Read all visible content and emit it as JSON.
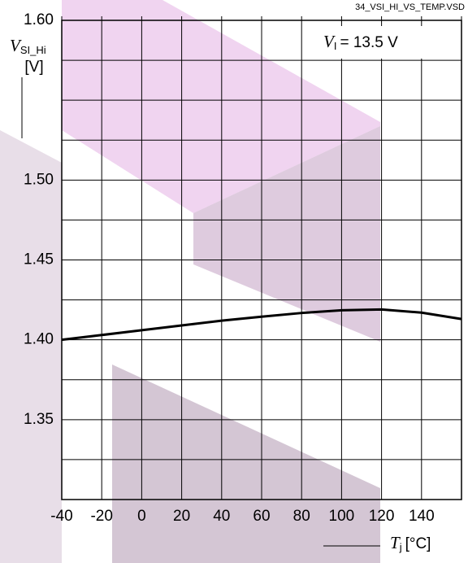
{
  "chart_data": {
    "type": "line",
    "file_label": "34_VSI_HI_VS_TEMP.VSD",
    "annotation": {
      "symbol": "V",
      "subscript": "I",
      "text": "= 13.5 V"
    },
    "y_label": {
      "symbol": "V",
      "subscript": "SI_Hi",
      "unit": "[V]"
    },
    "x_label": {
      "symbol": "T",
      "subscript": "j",
      "unit": "[°C]"
    },
    "x": [
      -40,
      -20,
      0,
      20,
      40,
      60,
      80,
      100,
      120,
      140,
      160
    ],
    "series": [
      {
        "name": null,
        "color": "#000000",
        "values": [
          1.4,
          1.403,
          1.406,
          1.409,
          1.412,
          1.4145,
          1.4168,
          1.4185,
          1.419,
          1.417,
          1.413
        ]
      }
    ],
    "xlim": [
      -40,
      160
    ],
    "xticks": [
      -40,
      -20,
      0,
      20,
      40,
      60,
      80,
      100,
      120,
      140,
      {
        "value": 160,
        "label": null
      }
    ],
    "ylim": [
      1.3,
      1.6
    ],
    "yticks": [
      {
        "value": 1.3,
        "label": null
      },
      {
        "value": 1.325,
        "label": null
      },
      {
        "value": 1.35,
        "label": "1.35"
      },
      {
        "value": 1.375,
        "label": null
      },
      {
        "value": 1.4,
        "label": "1.40"
      },
      {
        "value": 1.425,
        "label": null
      },
      {
        "value": 1.45,
        "label": "1.45"
      },
      {
        "value": 1.475,
        "label": null
      },
      {
        "value": 1.5,
        "label": "1.50"
      },
      {
        "value": 1.525,
        "label": null
      },
      {
        "value": 1.55,
        "label": null
      },
      {
        "value": 1.575,
        "label": null
      },
      {
        "value": 1.6,
        "label": "1.60"
      }
    ],
    "grid": true
  }
}
